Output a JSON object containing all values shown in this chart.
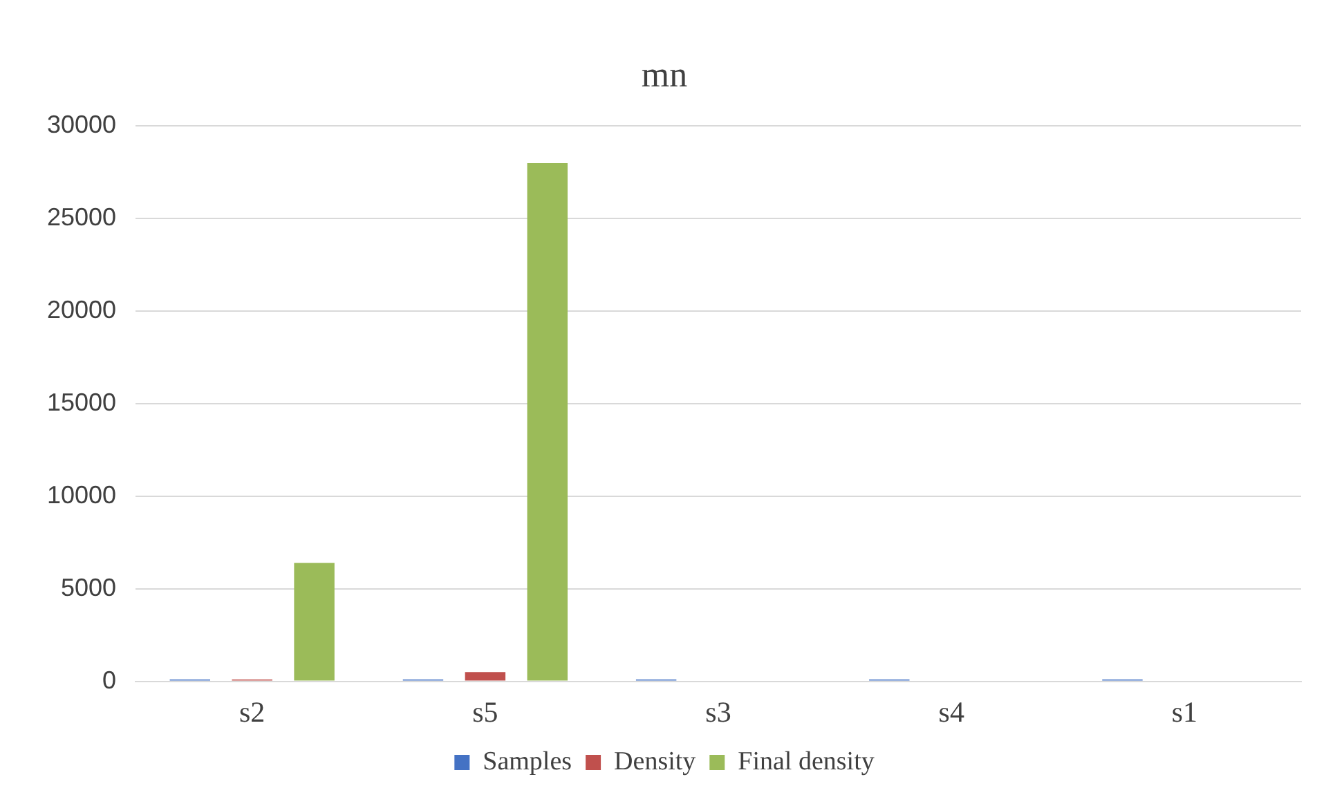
{
  "chart_data": {
    "type": "bar",
    "title": "mn",
    "categories": [
      "s2",
      "s5",
      "s3",
      "s4",
      "s1"
    ],
    "series": [
      {
        "name": "Samples",
        "color": "#4472c4",
        "values": [
          100,
          100,
          100,
          100,
          100
        ]
      },
      {
        "name": "Density",
        "color": "#c0504d",
        "values": [
          100,
          500,
          0,
          0,
          0
        ]
      },
      {
        "name": "Final density",
        "color": "#9bbb59",
        "values": [
          6400,
          28000,
          0,
          0,
          0
        ]
      }
    ],
    "ylim": [
      0,
      30000
    ],
    "yticks": [
      0,
      5000,
      10000,
      15000,
      20000,
      25000,
      30000
    ],
    "grid": "y",
    "legend": "bottom"
  }
}
